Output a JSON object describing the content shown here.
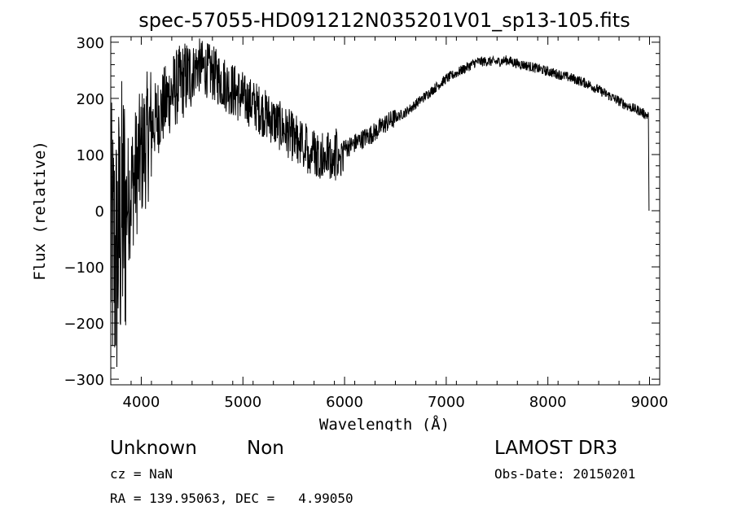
{
  "chart_data": {
    "type": "line",
    "title": "spec-57055-HD091212N035201V01_sp13-105.fits",
    "xlabel": "Wavelength (Å)",
    "ylabel": "Flux (relative)",
    "xlim": [
      3700,
      9100
    ],
    "ylim": [
      -310,
      310
    ],
    "xticks": [
      4000,
      5000,
      6000,
      7000,
      8000,
      9000
    ],
    "yticks": [
      -300,
      -200,
      -100,
      0,
      100,
      200,
      300
    ],
    "xtick_labels": [
      "4000",
      "5000",
      "6000",
      "7000",
      "8000",
      "9000"
    ],
    "ytick_labels": [
      "−300",
      "−200",
      "−100",
      "0",
      "100",
      "200",
      "300"
    ],
    "grid": false,
    "line_color": "#000000",
    "series": [
      {
        "x": [
          3700,
          3750,
          3800,
          3850,
          3900,
          3950,
          4000,
          4100,
          4200,
          4300,
          4400,
          4500,
          4550,
          4600,
          4700,
          4800,
          4900,
          5000,
          5100,
          5200,
          5300,
          5400,
          5500,
          5600,
          5700,
          5800,
          5900,
          6000,
          6100,
          6200,
          6300,
          6400,
          6500,
          6600,
          6700,
          6800,
          6900,
          7000,
          7100,
          7200,
          7300,
          7400,
          7500,
          7600,
          7700,
          7800,
          7900,
          8000,
          8100,
          8200,
          8300,
          8400,
          8500,
          8600,
          8700,
          8800,
          8900,
          8990
        ],
        "values": [
          -60,
          -90,
          -20,
          10,
          40,
          70,
          100,
          150,
          180,
          210,
          230,
          245,
          260,
          255,
          245,
          230,
          215,
          200,
          190,
          175,
          160,
          145,
          130,
          115,
          105,
          100,
          100,
          110,
          120,
          130,
          140,
          155,
          165,
          175,
          190,
          205,
          220,
          235,
          245,
          255,
          265,
          266,
          265,
          268,
          262,
          258,
          253,
          248,
          243,
          238,
          232,
          225,
          215,
          205,
          195,
          185,
          178,
          168
        ]
      }
    ]
  },
  "footer": {
    "object_class": "Unknown",
    "subclass": "Non",
    "survey": "LAMOST DR3",
    "cz": "cz = NaN",
    "obs_date": "Obs-Date: 20150201",
    "coords": "RA = 139.95063, DEC =   4.99050"
  }
}
